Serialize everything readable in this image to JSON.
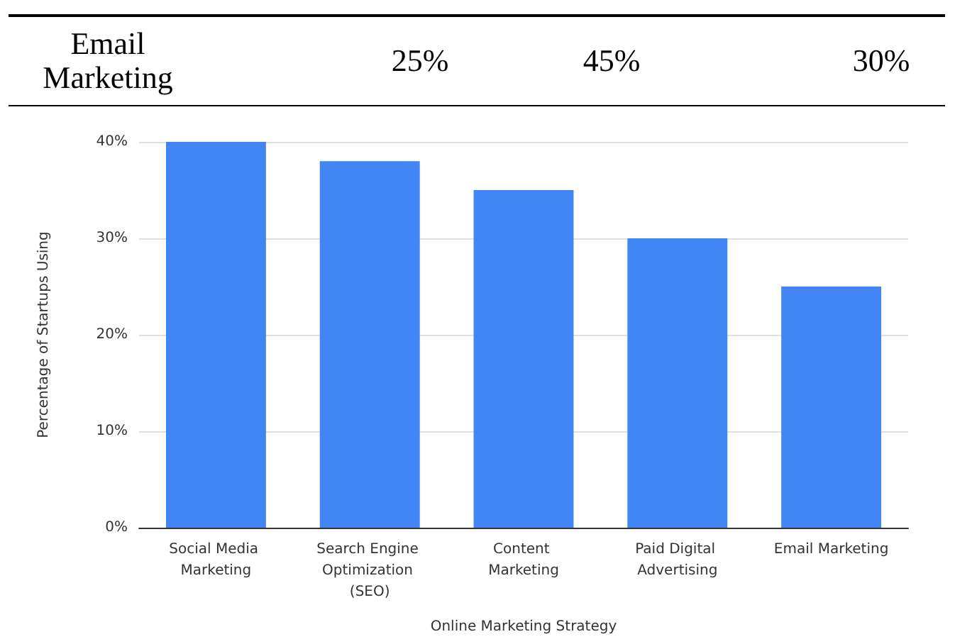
{
  "chart_data": {
    "type": "bar",
    "xlabel": "Online Marketing Strategy",
    "ylabel": "Percentage of Startups Using",
    "categories": [
      "Social Media Marketing",
      "Search Engine Optimization (SEO)",
      "Content Marketing",
      "Paid Digital Advertising",
      "Email Marketing"
    ],
    "values": [
      40,
      38,
      35,
      30,
      25
    ],
    "color": "#4285f4",
    "ylim": [
      0,
      40
    ],
    "yticks": [
      {
        "value": 0,
        "label": "0%"
      },
      {
        "value": 10,
        "label": "10%"
      },
      {
        "value": 20,
        "label": "20%"
      },
      {
        "value": 30,
        "label": "30%"
      },
      {
        "value": 40,
        "label": "40%"
      }
    ],
    "grid": "y",
    "annotations": [
      "Email Marketing",
      "25%",
      "45%",
      "30%"
    ]
  }
}
